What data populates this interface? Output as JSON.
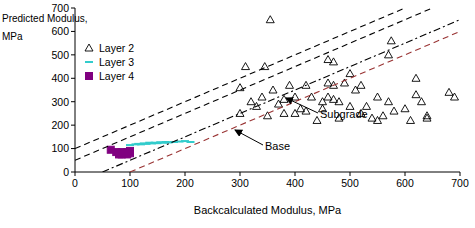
{
  "chart_data": {
    "type": "scatter",
    "xlabel": "Backcalculated Modulus, MPa",
    "ylabel": "Predicted Modulus, MPa",
    "xlim": [
      0,
      700
    ],
    "ylim": [
      0,
      700
    ],
    "xticks": [
      0,
      100,
      200,
      300,
      400,
      500,
      600,
      700
    ],
    "yticks": [
      0,
      100,
      200,
      300,
      400,
      500,
      600,
      700
    ],
    "grid": false,
    "legend": "upper left",
    "annotations": [
      {
        "text": "Subgrade"
      },
      {
        "text": "Base"
      }
    ],
    "series": [
      {
        "name": "Layer 2",
        "type": "scatter",
        "marker": "triangle",
        "color": "#000000",
        "x": [
          300,
          310,
          320,
          330,
          340,
          345,
          350,
          355,
          360,
          370,
          380,
          380,
          390,
          400,
          400,
          420,
          420,
          430,
          440,
          450,
          450,
          460,
          460,
          470,
          470,
          480,
          480,
          490,
          500,
          500,
          510,
          520,
          520,
          530,
          540,
          550,
          550,
          560,
          570,
          570,
          575,
          580,
          600,
          610,
          620,
          620,
          630,
          640,
          640,
          680,
          690,
          460,
          470,
          410,
          300
        ],
        "values": [
          360,
          450,
          300,
          280,
          320,
          450,
          240,
          650,
          350,
          290,
          310,
          250,
          370,
          320,
          250,
          370,
          260,
          320,
          220,
          300,
          270,
          380,
          320,
          310,
          370,
          230,
          300,
          380,
          420,
          280,
          350,
          370,
          250,
          280,
          230,
          320,
          220,
          240,
          300,
          500,
          560,
          260,
          270,
          220,
          400,
          330,
          300,
          240,
          230,
          340,
          320,
          480,
          470,
          270,
          250
        ]
      },
      {
        "name": "Layer 3",
        "type": "scatter",
        "marker": "dash",
        "color": "#33cccc",
        "x": [
          100,
          110,
          115,
          120,
          125,
          130,
          135,
          140,
          145,
          150,
          155,
          160,
          165,
          170,
          180,
          190,
          200,
          210
        ],
        "values": [
          115,
          118,
          120,
          118,
          122,
          120,
          125,
          122,
          125,
          123,
          127,
          125,
          128,
          126,
          128,
          130,
          132,
          128
        ]
      },
      {
        "name": "Layer 4",
        "type": "scatter",
        "marker": "square",
        "color": "#800080",
        "x": [
          65,
          75,
          80,
          85,
          90,
          95,
          100,
          85,
          95,
          100
        ],
        "values": [
          95,
          85,
          75,
          85,
          80,
          85,
          80,
          75,
          75,
          90
        ]
      },
      {
        "type": "line",
        "line_style": "dashed",
        "color": "#000000",
        "x": [
          0,
          600
        ],
        "values": [
          100,
          700
        ]
      },
      {
        "type": "line",
        "line_style": "dashed",
        "color": "#000000",
        "x": [
          0,
          650
        ],
        "values": [
          50,
          700
        ]
      },
      {
        "type": "line",
        "line_style": "dashdot",
        "color": "#000000",
        "x": [
          50,
          700
        ],
        "values": [
          0,
          650
        ]
      },
      {
        "type": "line",
        "line_style": "dashed",
        "color": "#993333",
        "x": [
          100,
          700
        ],
        "values": [
          0,
          600
        ]
      }
    ]
  }
}
